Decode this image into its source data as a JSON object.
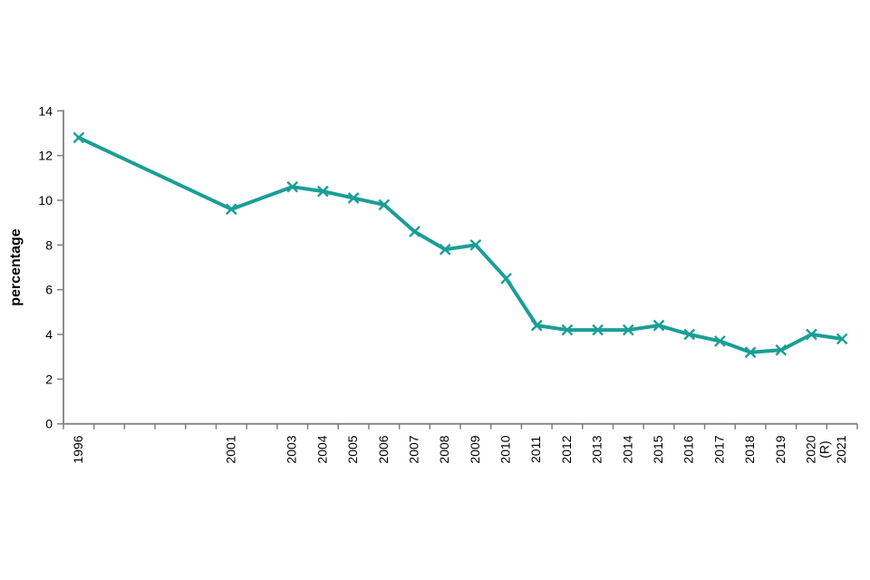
{
  "chart_data": {
    "type": "line",
    "title": "",
    "ylabel": "percentage",
    "ylim": [
      0,
      14
    ],
    "ytick_interval": 2,
    "yticks": [
      0,
      2,
      4,
      6,
      8,
      10,
      12,
      14
    ],
    "x_axis_years": {
      "first": 1996,
      "last": 2021
    },
    "x": [
      1996,
      2001,
      2003,
      2004,
      2005,
      2006,
      2007,
      2008,
      2009,
      2010,
      2011,
      2012,
      2013,
      2014,
      2015,
      2016,
      2017,
      2018,
      2019,
      2020,
      2021
    ],
    "x_labels": [
      "1996",
      "2001",
      "2003",
      "2004",
      "2005",
      "2006",
      "2007",
      "2008",
      "2009",
      "2010",
      "2011",
      "2012",
      "2013",
      "2014",
      "2015",
      "2016",
      "2017",
      "2018",
      "2019",
      "2020\n(R)",
      "2021"
    ],
    "values": [
      12.8,
      9.6,
      10.6,
      10.4,
      10.1,
      9.8,
      8.6,
      7.8,
      8.0,
      6.5,
      4.4,
      4.2,
      4.2,
      4.2,
      4.4,
      4.0,
      3.7,
      3.2,
      3.3,
      4.0,
      3.8
    ],
    "series_name": "percentage",
    "marker": "x",
    "grid": false,
    "legend": "none",
    "colors": {
      "line": "#1A9E97",
      "axis": "#7F7F7F",
      "text": "#000000",
      "background": "#FFFFFF"
    }
  }
}
